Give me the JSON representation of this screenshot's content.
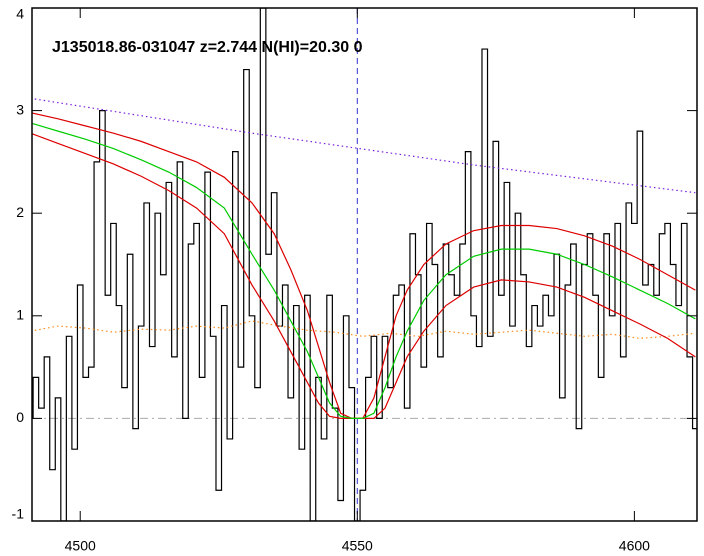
{
  "chart_data": {
    "type": "line",
    "title": "J135018.86-031047 z=2.744 N(HI)=20.30 0",
    "xlim": [
      4491.3,
      4611.3
    ],
    "ylim": [
      -1,
      4
    ],
    "xticks": [
      4500,
      4550,
      4600
    ],
    "yticks": [
      -1,
      0,
      1,
      2,
      3,
      4
    ],
    "hlines": [
      {
        "value": 0,
        "color": "#aaaaaa",
        "style": "dashdot"
      }
    ],
    "vlines": [
      {
        "value": 4550,
        "color": "#3333cc",
        "style": "dashed"
      }
    ],
    "series": [
      {
        "kind": "step",
        "color": "#000000",
        "style": "solid",
        "x": [
          4491,
          4492,
          4493,
          4494,
          4495,
          4496,
          4497,
          4498,
          4499,
          4500,
          4501,
          4502,
          4503,
          4504,
          4505,
          4506,
          4507,
          4508,
          4509,
          4510,
          4511,
          4512,
          4513,
          4514,
          4515,
          4516,
          4517,
          4518,
          4519,
          4520,
          4521,
          4522,
          4523,
          4524,
          4525,
          4526,
          4527,
          4528,
          4529,
          4530,
          4531,
          4532,
          4533,
          4534,
          4535,
          4536,
          4537,
          4538,
          4539,
          4540,
          4541,
          4542,
          4543,
          4544,
          4545,
          4546,
          4547,
          4548,
          4549,
          4550,
          4551,
          4552,
          4553,
          4554,
          4555,
          4556,
          4557,
          4558,
          4559,
          4560,
          4561,
          4562,
          4563,
          4564,
          4565,
          4566,
          4567,
          4568,
          4569,
          4570,
          4571,
          4572,
          4573,
          4574,
          4575,
          4576,
          4577,
          4578,
          4579,
          4580,
          4581,
          4582,
          4583,
          4584,
          4585,
          4586,
          4587,
          4588,
          4589,
          4590,
          4591,
          4592,
          4593,
          4594,
          4595,
          4596,
          4597,
          4598,
          4599,
          4600,
          4601,
          4602,
          4603,
          4604,
          4605,
          4606,
          4607,
          4608,
          4609,
          4610,
          4611
        ],
        "values": [
          0.0,
          0.4,
          0.1,
          0.6,
          -0.5,
          0.2,
          -1.0,
          0.8,
          -0.3,
          1.3,
          0.4,
          0.5,
          2.5,
          3.0,
          1.2,
          1.9,
          1.1,
          0.3,
          1.6,
          -0.1,
          0.9,
          2.1,
          0.7,
          2.0,
          1.4,
          2.3,
          0.6,
          2.5,
          0.0,
          1.7,
          1.9,
          0.4,
          2.4,
          0.8,
          -0.7,
          1.1,
          -0.2,
          2.6,
          0.5,
          3.4,
          1.0,
          0.3,
          4.0,
          1.6,
          2.2,
          0.9,
          1.3,
          0.2,
          1.1,
          -0.3,
          1.2,
          -1.0,
          0.4,
          -0.2,
          1.2,
          0.1,
          -0.8,
          1.0,
          0.3,
          -1.0,
          -0.7,
          0.4,
          0.8,
          0.0,
          0.8,
          0.3,
          1.2,
          1.3,
          0.1,
          1.8,
          1.4,
          0.5,
          1.9,
          1.5,
          0.6,
          1.7,
          1.4,
          1.2,
          1.7,
          2.6,
          1.0,
          0.7,
          3.6,
          0.8,
          2.7,
          1.2,
          2.3,
          0.9,
          2.0,
          1.4,
          0.7,
          1.1,
          0.9,
          1.2,
          1.0,
          1.6,
          0.2,
          1.3,
          1.7,
          -0.1,
          1.5,
          1.8,
          1.2,
          0.4,
          1.8,
          1.0,
          1.9,
          0.6,
          2.1,
          1.9,
          2.8,
          1.3,
          1.5,
          1.2,
          1.8,
          1.9,
          1.5,
          1.1,
          1.9,
          0.6,
          -0.1
        ]
      },
      {
        "kind": "line",
        "color": "#ff8c1a",
        "style": "dotted",
        "x": [
          4491,
          4496,
          4501,
          4506,
          4511,
          4516,
          4521,
          4526,
          4531,
          4536,
          4541,
          4546,
          4551,
          4556,
          4561,
          4566,
          4571,
          4576,
          4581,
          4586,
          4591,
          4596,
          4601,
          4606,
          4611
        ],
        "values": [
          0.85,
          0.9,
          0.88,
          0.84,
          0.87,
          0.86,
          0.9,
          0.88,
          0.95,
          0.9,
          0.86,
          0.84,
          0.8,
          0.83,
          0.8,
          0.85,
          0.82,
          0.84,
          0.86,
          0.83,
          0.8,
          0.82,
          0.78,
          0.8,
          0.83
        ]
      },
      {
        "kind": "line",
        "color": "#7a1fe0",
        "style": "dotted",
        "x": [
          4491,
          4531,
          4571,
          4611
        ],
        "values": [
          3.12,
          2.78,
          2.47,
          2.2
        ]
      },
      {
        "kind": "line",
        "color": "#dd0000",
        "style": "solid",
        "x": [
          4491,
          4496,
          4501,
          4506,
          4511,
          4516,
          4521,
          4526,
          4531,
          4535,
          4538,
          4541,
          4543,
          4545,
          4547,
          4549,
          4551,
          4553,
          4555,
          4557,
          4559,
          4562,
          4566,
          4571,
          4576,
          4581,
          4586,
          4591,
          4596,
          4601,
          4606,
          4611
        ],
        "values": [
          2.98,
          2.92,
          2.85,
          2.78,
          2.7,
          2.6,
          2.5,
          2.35,
          2.1,
          1.8,
          1.45,
          1.05,
          0.7,
          0.35,
          0.05,
          0,
          0,
          0.2,
          0.6,
          1.0,
          1.25,
          1.5,
          1.7,
          1.83,
          1.88,
          1.88,
          1.85,
          1.78,
          1.68,
          1.55,
          1.4,
          1.25
        ]
      },
      {
        "kind": "line",
        "color": "#dd0000",
        "style": "solid",
        "x": [
          4491,
          4496,
          4501,
          4506,
          4511,
          4516,
          4521,
          4526,
          4531,
          4535,
          4538,
          4541,
          4543,
          4545,
          4547,
          4549,
          4551,
          4553,
          4555,
          4557,
          4559,
          4562,
          4566,
          4571,
          4576,
          4581,
          4586,
          4591,
          4596,
          4601,
          4606,
          4611
        ],
        "values": [
          2.78,
          2.68,
          2.58,
          2.48,
          2.36,
          2.22,
          2.05,
          1.8,
          1.3,
          0.95,
          0.65,
          0.35,
          0.15,
          0.02,
          0,
          0,
          0,
          0,
          0.1,
          0.35,
          0.6,
          0.85,
          1.1,
          1.28,
          1.35,
          1.33,
          1.28,
          1.18,
          1.05,
          0.92,
          0.78,
          0.6
        ]
      },
      {
        "kind": "line",
        "color": "#00cc00",
        "style": "solid",
        "x": [
          4491,
          4496,
          4501,
          4506,
          4511,
          4516,
          4521,
          4526,
          4531,
          4535,
          4538,
          4541,
          4543,
          4545,
          4547,
          4549,
          4551,
          4553,
          4555,
          4557,
          4559,
          4562,
          4566,
          4571,
          4576,
          4581,
          4586,
          4591,
          4596,
          4601,
          4606,
          4611
        ],
        "values": [
          2.88,
          2.8,
          2.72,
          2.63,
          2.52,
          2.4,
          2.25,
          2.05,
          1.6,
          1.25,
          0.95,
          0.65,
          0.4,
          0.15,
          0.02,
          0,
          0,
          0.05,
          0.3,
          0.6,
          0.85,
          1.15,
          1.4,
          1.58,
          1.65,
          1.65,
          1.6,
          1.5,
          1.38,
          1.25,
          1.12,
          0.97
        ]
      }
    ]
  }
}
